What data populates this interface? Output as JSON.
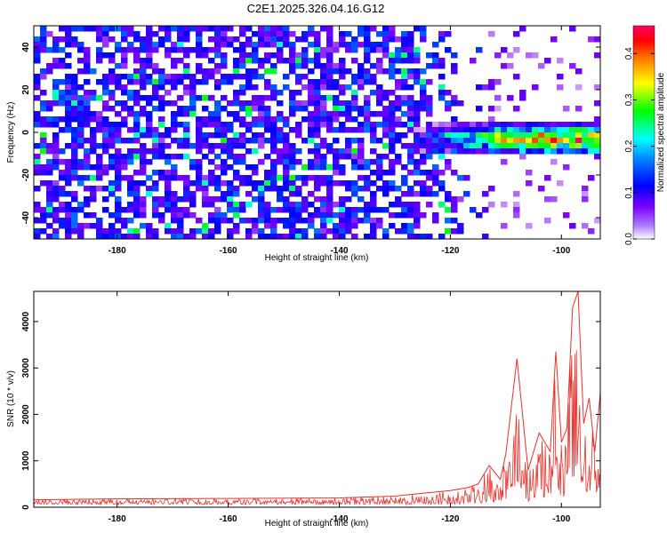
{
  "figure_title": "C2E1.2025.326.04.16.G12",
  "chart_data": [
    {
      "type": "heatmap",
      "xlabel": "Height of straight line (km)",
      "ylabel": "Frequency (Hz)",
      "xlim": [
        -195,
        -93
      ],
      "ylim": [
        -50,
        50
      ],
      "x_ticks": [
        -180,
        -160,
        -140,
        -120,
        -100
      ],
      "y_ticks": [
        -40,
        -20,
        0,
        20,
        40
      ],
      "colorbar": {
        "label": "Normalized spectral amplitude",
        "range": [
          0.0,
          0.46
        ],
        "ticks": [
          0.0,
          0.1,
          0.2,
          0.3,
          0.4
        ],
        "colormap": [
          "#ffffff",
          "#7a00ff",
          "#0000ff",
          "#00ffff",
          "#00ff00",
          "#ffff00",
          "#ff7f00",
          "#ff0000",
          "#ff00aa"
        ]
      },
      "features": [
        {
          "name": "diffuse noise",
          "x_range": [
            -195,
            -113
          ],
          "freq_range": [
            -50,
            50
          ],
          "amplitude": 0.03
        },
        {
          "name": "signal band",
          "x_range": [
            -127,
            -93
          ],
          "center_freq": -3,
          "width_hz": 8,
          "peak_amplitude": 0.46
        }
      ]
    },
    {
      "type": "line",
      "xlabel": "Height of straight line (km)",
      "ylabel": "SNR (10 * v/v)",
      "xlim": [
        -195,
        -93
      ],
      "ylim": [
        0,
        4650
      ],
      "x_ticks": [
        -180,
        -160,
        -140,
        -120,
        -100
      ],
      "y_ticks": [
        0,
        1000,
        2000,
        3000,
        4000
      ],
      "color": "#e8302a",
      "series": [
        {
          "name": "SNR",
          "x": [
            -195,
            -180,
            -160,
            -140,
            -130,
            -125,
            -120,
            -117,
            -115,
            -113,
            -111,
            -110,
            -108,
            -106,
            -104,
            -102,
            -101,
            -100,
            -99,
            -98,
            -97,
            -96,
            -95,
            -94,
            -93
          ],
          "values": [
            160,
            180,
            190,
            200,
            240,
            300,
            360,
            420,
            500,
            900,
            600,
            1150,
            3200,
            800,
            1600,
            1200,
            3350,
            1400,
            1700,
            4300,
            4650,
            1800,
            2350,
            1200,
            2450
          ]
        }
      ]
    }
  ]
}
